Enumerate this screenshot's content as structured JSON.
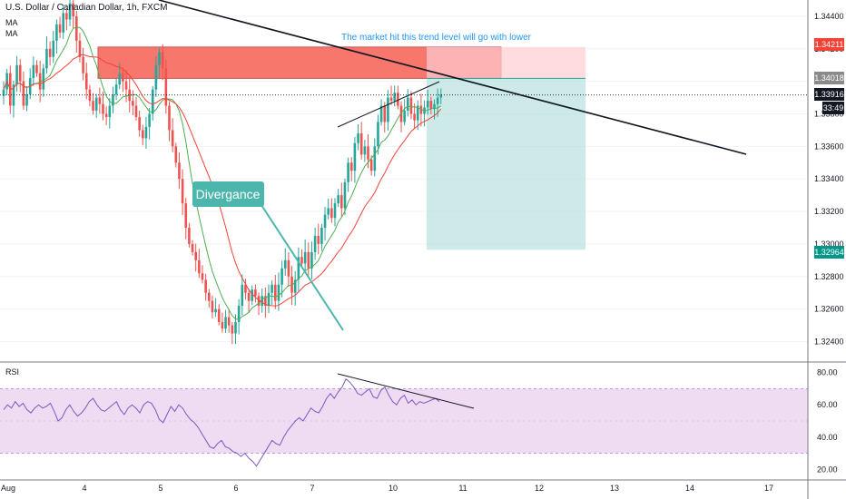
{
  "header": {
    "symbol_title": "U.S. Dollar / Canadian Dollar, 1h, FXCM",
    "ma1_label": "MA",
    "ma2_label": "MA"
  },
  "annotations": {
    "note": "The market hit this trend level will go with lower",
    "divergence_label": "Divergance"
  },
  "rsi_label": "RSI",
  "price_badges": {
    "top_zone": "1.34211",
    "zone_low": "1.34018",
    "last": "1.33916",
    "countdown": "33:49",
    "target": "1.32964"
  },
  "colors": {
    "bull": "#26a69a",
    "bear": "#ef5350",
    "ma_fast": "#4caf50",
    "ma_slow": "#f44336",
    "rsi_line": "#7e57c2",
    "rsi_band": "#e1bee7",
    "note_text": "#2196f3",
    "divergence_box": "#4db6ac"
  },
  "chart_data": [
    {
      "type": "candlestick",
      "title": "U.S. Dollar / Canadian Dollar, 1h, FXCM",
      "y_ticks": [
        "1.34400",
        "1.34200",
        "1.34000",
        "1.33800",
        "1.33600",
        "1.33400",
        "1.33200",
        "1.33000",
        "1.32800",
        "1.32600",
        "1.32400"
      ],
      "x_ticks": [
        "Aug",
        "4",
        "5",
        "6",
        "7",
        "10",
        "11",
        "12",
        "13",
        "14",
        "17"
      ],
      "ylim": [
        1.3228,
        1.345
      ],
      "closes": [
        1.3395,
        1.3405,
        1.3385,
        1.3398,
        1.341,
        1.34,
        1.3385,
        1.3392,
        1.3402,
        1.341,
        1.3405,
        1.3395,
        1.3408,
        1.342,
        1.3415,
        1.3425,
        1.3435,
        1.343,
        1.3442,
        1.3438,
        1.3448,
        1.344,
        1.3425,
        1.3415,
        1.3405,
        1.3395,
        1.3388,
        1.3382,
        1.339,
        1.3386,
        1.338,
        1.3378,
        1.3385,
        1.3392,
        1.3398,
        1.3405,
        1.34,
        1.3395,
        1.3388,
        1.3385,
        1.3378,
        1.337,
        1.3365,
        1.3372,
        1.338,
        1.3395,
        1.341,
        1.3418,
        1.3408,
        1.3385,
        1.337,
        1.336,
        1.335,
        1.334,
        1.3325,
        1.331,
        1.33,
        1.3295,
        1.329,
        1.3282,
        1.3278,
        1.327,
        1.3265,
        1.3258,
        1.326,
        1.3252,
        1.3248,
        1.3255,
        1.325,
        1.3245,
        1.3252,
        1.3262,
        1.3275,
        1.327,
        1.3265,
        1.3272,
        1.3268,
        1.3262,
        1.3268,
        1.3262,
        1.327,
        1.3275,
        1.3265,
        1.3275,
        1.3285,
        1.329,
        1.328,
        1.327,
        1.3278,
        1.3292,
        1.3288,
        1.3295,
        1.3285,
        1.3295,
        1.3305,
        1.33,
        1.331,
        1.3318,
        1.3322,
        1.3316,
        1.3325,
        1.333,
        1.3322,
        1.3338,
        1.335,
        1.3345,
        1.3362,
        1.3368,
        1.3355,
        1.336,
        1.3352,
        1.3345,
        1.336,
        1.3375,
        1.3385,
        1.3375,
        1.339,
        1.3388,
        1.3393,
        1.3385,
        1.3375,
        1.3382,
        1.339,
        1.338,
        1.3376,
        1.3385,
        1.338,
        1.3384,
        1.3388,
        1.3383,
        1.3386,
        1.339,
        1.3392
      ],
      "series": [
        {
          "name": "MA"
        },
        {
          "name": "MA"
        }
      ],
      "trendline": {
        "from": [
          "Aug",
          1.3452
        ],
        "to": [
          "14",
          1.3358
        ]
      },
      "sell_zone": {
        "top": 1.34211,
        "bottom": 1.34018
      },
      "target": 1.32964,
      "last_price": 1.33916
    },
    {
      "type": "line",
      "title": "RSI",
      "y_ticks": [
        "80.00",
        "60.00",
        "40.00",
        "20.00"
      ],
      "ylim": [
        14,
        86
      ],
      "band": [
        30,
        70
      ],
      "values": [
        57,
        60,
        58,
        62,
        59,
        61,
        57,
        55,
        58,
        60,
        58,
        59,
        61,
        56,
        50,
        52,
        57,
        60,
        56,
        53,
        55,
        58,
        62,
        64,
        60,
        57,
        56,
        58,
        60,
        62,
        57,
        54,
        58,
        60,
        58,
        55,
        60,
        62,
        61,
        57,
        51,
        49,
        54,
        59,
        56,
        60,
        58,
        54,
        51,
        49,
        46,
        42,
        38,
        34,
        33,
        36,
        38,
        34,
        33,
        31,
        30,
        28,
        30,
        27,
        25,
        22,
        26,
        30,
        34,
        38,
        36,
        35,
        40,
        44,
        47,
        50,
        52,
        50,
        54,
        58,
        56,
        55,
        59,
        64,
        67,
        64,
        68,
        71,
        76,
        74,
        71,
        67,
        66,
        68,
        70,
        65,
        64,
        69,
        71,
        66,
        62,
        60,
        64,
        66,
        61,
        63,
        60,
        62,
        61,
        62,
        63,
        64,
        62
      ]
    }
  ]
}
